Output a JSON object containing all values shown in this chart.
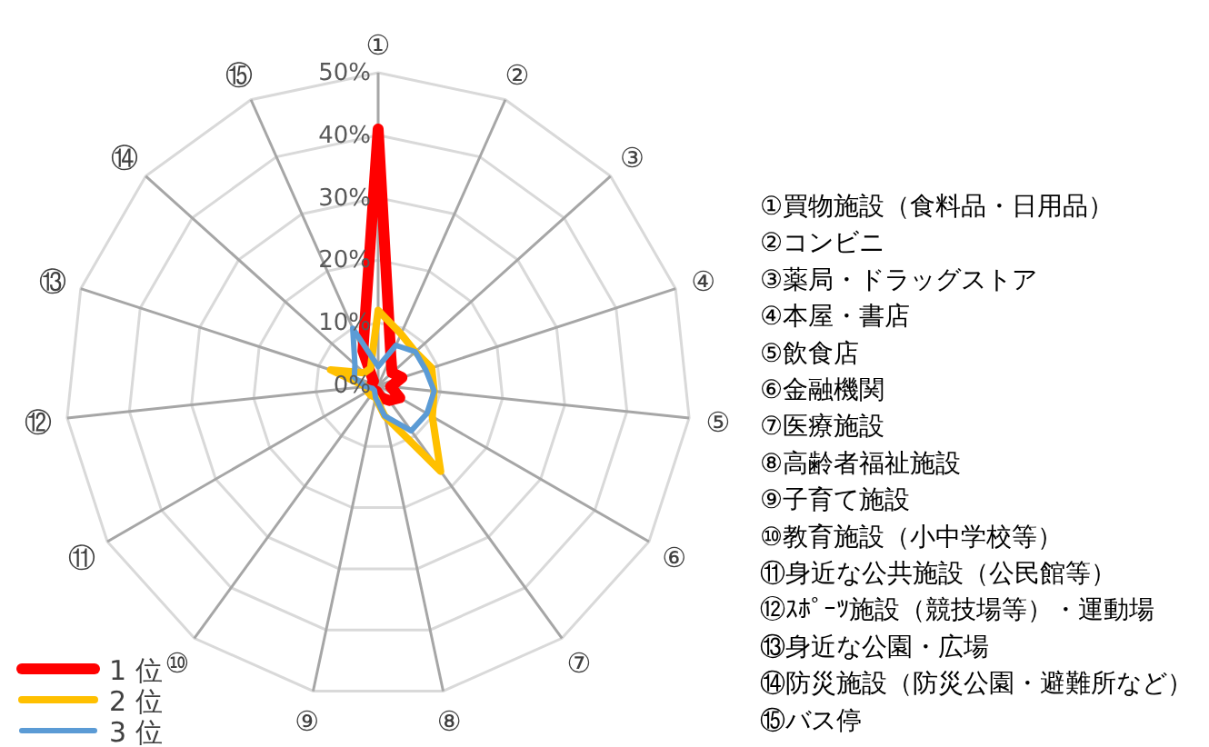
{
  "chart_data": {
    "type": "radar",
    "categories": [
      "①",
      "②",
      "③",
      "④",
      "⑤",
      "⑥",
      "⑦",
      "⑧",
      "⑨",
      "⑩",
      "⑪",
      "⑫",
      "⑬",
      "⑭",
      "⑮"
    ],
    "series": [
      {
        "name": "1 位",
        "color": "#ff0000",
        "values": [
          41,
          5,
          3,
          4,
          2,
          4,
          3,
          2,
          1,
          1,
          1,
          1,
          1,
          1,
          6
        ]
      },
      {
        "name": "2 位",
        "color": "#ffc000",
        "values": [
          12,
          9,
          8,
          9,
          9,
          10,
          17,
          5,
          2,
          2,
          2,
          2,
          8,
          3,
          3
        ]
      },
      {
        "name": "3 位",
        "color": "#5b9bd5",
        "values": [
          3,
          7,
          8,
          8,
          9,
          9,
          9,
          5,
          2,
          1,
          1,
          2,
          4,
          5,
          10
        ]
      }
    ],
    "ylim": [
      0,
      50
    ],
    "yticks": [
      {
        "value": 0,
        "label": "0%"
      },
      {
        "value": 10,
        "label": "10%"
      },
      {
        "value": 20,
        "label": "20%"
      },
      {
        "value": 30,
        "label": "30%"
      },
      {
        "value": 40,
        "label": "40%"
      },
      {
        "value": 50,
        "label": "50%"
      }
    ],
    "grid": true,
    "legend": "bottom left",
    "annotations": [
      "①買物施設（食料品・日用品）",
      "②コンビニ",
      "③薬局・ドラッグストア",
      "④本屋・書店",
      "⑤飲食店",
      "⑥金融機関",
      "⑦医療施設",
      "⑧高齢者福祉施設",
      "⑨子育て施設",
      "⑩教育施設（小中学校等）",
      "⑪身近な公共施設（公民館等）",
      "⑫ｽﾎﾟｰﾂ施設（競技場等）・運動場",
      "⑬身近な公園・広場",
      "⑭防災施設（防災公園・避難所など）",
      "⑮バス停"
    ]
  }
}
